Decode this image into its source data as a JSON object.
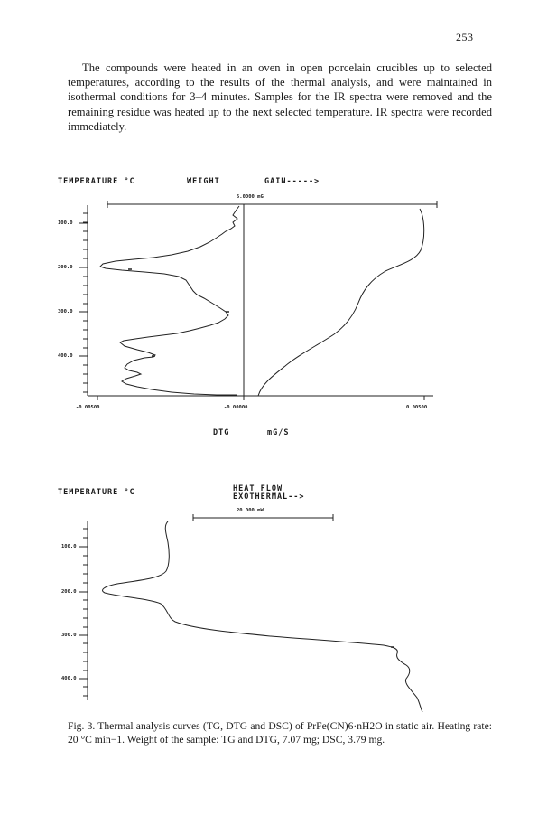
{
  "page_number": "253",
  "intro_text": "The compounds were heated in an oven in open porcelain crucibles up to selected temperatures, according to the results of the thermal analysis, and were maintained in isothermal conditions for 3–4 minutes. Samples for the IR spectra were removed and the remaining residue was heated up to the next selected temperature. IR spectra were recorded immediately.",
  "figure": {
    "top_chart": {
      "temperature_label": "TEMPERATURE °C",
      "weight_label": "WEIGHT",
      "gain_label": "GAIN----->",
      "scale_label": "5.0000 mG",
      "y_ticks": [
        "100.0",
        "200.0",
        "300.0",
        "400.0"
      ],
      "x_ticks": [
        "-0.00500",
        "-0.00000",
        "0.00500"
      ],
      "x_label_dtg": "DTG",
      "x_label_unit": "mG/S"
    },
    "bottom_chart": {
      "temperature_label": "TEMPERATURE °C",
      "heat_flow_label": "HEAT FLOW",
      "exothermal_label": "EXOTHERMAL-->",
      "scale_label": "20.000 mW",
      "y_ticks": [
        "100.0",
        "200.0",
        "300.0",
        "400.0"
      ]
    },
    "caption": "Fig. 3. Thermal analysis curves (TG, DTG and DSC) of PrFe(CN)6·nH2O in static air. Heating rate: 20 °C min−1. Weight of the sample: TG and DTG, 7.07 mg; DSC, 3.79 mg."
  }
}
